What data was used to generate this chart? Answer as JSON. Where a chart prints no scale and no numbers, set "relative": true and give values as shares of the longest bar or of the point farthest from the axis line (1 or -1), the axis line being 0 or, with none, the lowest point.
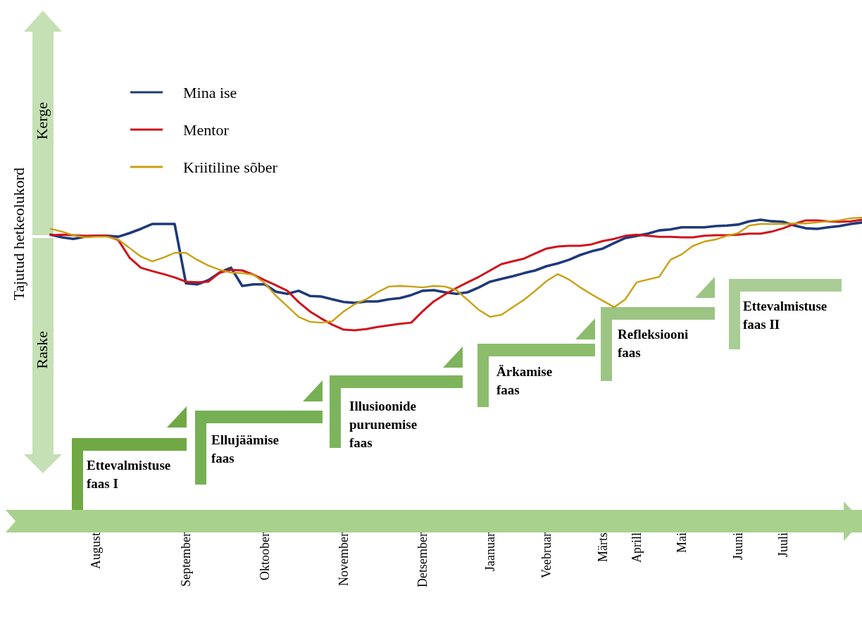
{
  "chart_data": {
    "type": "line",
    "relative": true,
    "ylabel": "Tajutud hetkeolukord",
    "categories": [
      null,
      null,
      null,
      null,
      "August",
      null,
      null,
      null,
      null,
      null,
      null,
      null,
      "September",
      null,
      null,
      null,
      null,
      null,
      null,
      "Oktoober",
      null,
      null,
      null,
      null,
      null,
      null,
      "November",
      null,
      null,
      null,
      null,
      null,
      null,
      "Detsember",
      null,
      null,
      null,
      null,
      null,
      "Jaanuar",
      null,
      null,
      null,
      null,
      "Veebruar",
      null,
      null,
      null,
      null,
      "Märts",
      null,
      null,
      "Aprill",
      null,
      null,
      null,
      "Mai",
      null,
      null,
      null,
      null,
      "Juuni",
      null,
      null,
      null,
      "Juuli",
      null,
      null,
      null,
      null,
      null,
      null,
      null
    ],
    "grid": false,
    "legend": "top left",
    "marker": "none",
    "line_style": "solid",
    "annotations": [
      "Kerge",
      "Raske",
      "Ettevalmistuse faas I",
      "Ellujäämise faas",
      "Illusioonide purunemise faas",
      "Ärkamise faas",
      "Refleksiooni faas",
      "Ettevalmistuse faas II"
    ],
    "series": [
      {
        "name": "Mina ise",
        "color": "#1f3a7a",
        "values": [
          0.944,
          0.935,
          0.93,
          0.937,
          0.94,
          0.94,
          0.937,
          0.949,
          0.963,
          0.979,
          0.979,
          0.979,
          0.784,
          0.78,
          0.794,
          0.819,
          0.835,
          0.775,
          0.78,
          0.78,
          0.756,
          0.749,
          0.759,
          0.742,
          0.74,
          0.731,
          0.722,
          0.719,
          0.724,
          0.724,
          0.731,
          0.735,
          0.745,
          0.759,
          0.761,
          0.754,
          0.749,
          0.754,
          0.77,
          0.789,
          0.798,
          0.807,
          0.817,
          0.826,
          0.84,
          0.849,
          0.861,
          0.877,
          0.889,
          0.898,
          0.916,
          0.933,
          0.94,
          0.947,
          0.958,
          0.961,
          0.968,
          0.968,
          0.968,
          0.972,
          0.974,
          0.977,
          0.988,
          0.993,
          0.988,
          0.986,
          0.974,
          0.965,
          0.963,
          0.968,
          0.972,
          0.979,
          0.984
        ]
      },
      {
        "name": "Mentor",
        "color": "#d0121b",
        "values": [
          0.942,
          0.944,
          0.942,
          0.94,
          0.94,
          0.94,
          0.926,
          0.868,
          0.835,
          0.824,
          0.814,
          0.803,
          0.789,
          0.787,
          0.789,
          0.819,
          0.828,
          0.826,
          0.812,
          0.794,
          0.777,
          0.759,
          0.722,
          0.691,
          0.668,
          0.647,
          0.631,
          0.629,
          0.633,
          0.64,
          0.645,
          0.65,
          0.654,
          0.691,
          0.724,
          0.747,
          0.768,
          0.787,
          0.805,
          0.826,
          0.847,
          0.856,
          0.865,
          0.882,
          0.898,
          0.905,
          0.907,
          0.907,
          0.912,
          0.923,
          0.93,
          0.94,
          0.944,
          0.94,
          0.937,
          0.937,
          0.935,
          0.935,
          0.94,
          0.942,
          0.942,
          0.944,
          0.947,
          0.947,
          0.954,
          0.965,
          0.979,
          0.991,
          0.991,
          0.988,
          0.986,
          0.988,
          0.993
        ]
      },
      {
        "name": "Kriitiline sõber",
        "color": "#c9a010",
        "values": [
          0.963,
          0.954,
          0.942,
          0.935,
          0.937,
          0.937,
          0.928,
          0.9,
          0.872,
          0.856,
          0.868,
          0.884,
          0.884,
          0.861,
          0.842,
          0.828,
          0.819,
          0.817,
          0.812,
          0.784,
          0.742,
          0.708,
          0.673,
          0.657,
          0.654,
          0.659,
          0.691,
          0.715,
          0.731,
          0.754,
          0.773,
          0.775,
          0.773,
          0.77,
          0.775,
          0.773,
          0.761,
          0.729,
          0.696,
          0.673,
          0.68,
          0.705,
          0.729,
          0.759,
          0.791,
          0.814,
          0.796,
          0.77,
          0.747,
          0.726,
          0.705,
          0.731,
          0.787,
          0.796,
          0.805,
          0.861,
          0.879,
          0.907,
          0.921,
          0.928,
          0.94,
          0.949,
          0.974,
          0.979,
          0.979,
          0.979,
          0.981,
          0.981,
          0.984,
          0.988,
          0.991,
          0.998,
          1
        ]
      }
    ]
  }
}
